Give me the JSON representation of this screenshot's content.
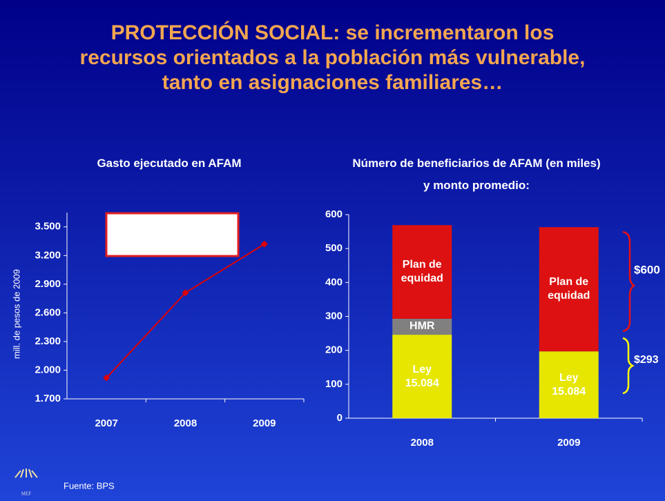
{
  "title": [
    "PROTECCIÓN SOCIAL: se incrementaron los",
    "recursos orientados a la  población más vulnerable,",
    "tanto en asignaciones familiares…"
  ],
  "source": "Fuente: BPS",
  "logo": "MEF",
  "chart_data": [
    {
      "type": "line",
      "title": [
        "Gasto ejecutado en AFAM"
      ],
      "y_label": "mill. de pesos de 2009",
      "categories": [
        "2007",
        "2008",
        "2009"
      ],
      "values": [
        1920,
        2810,
        3320
      ],
      "color": "#e00000",
      "ylim": [
        1700,
        3650
      ],
      "yticks": [
        {
          "value": 1700,
          "label": "1.700"
        },
        {
          "value": 2000,
          "label": "2.000"
        },
        {
          "value": 2300,
          "label": "2.300"
        },
        {
          "value": 2600,
          "label": "2.600"
        },
        {
          "value": 2900,
          "label": "2.900"
        },
        {
          "value": 3200,
          "label": "3.200"
        },
        {
          "value": 3500,
          "label": "3.500"
        }
      ]
    },
    {
      "type": "stacked_bar",
      "title": [
        "Número de beneficiarios de AFAM (en miles)",
        "y monto promedio:"
      ],
      "categories": [
        "2008",
        "2009"
      ],
      "series": [
        {
          "name": "Ley 15.084",
          "color": "#e6e600",
          "values": [
            246,
            197
          ]
        },
        {
          "name": "HMR",
          "color": "#808080",
          "values": [
            47,
            null
          ]
        },
        {
          "name": "Plan de equidad",
          "color": "#dd1111",
          "values": [
            276,
            366
          ]
        }
      ],
      "ylim": [
        0,
        600
      ],
      "yticks": [
        0,
        100,
        200,
        300,
        400,
        500,
        600
      ],
      "annotations": [
        "$600",
        "$293"
      ]
    }
  ]
}
